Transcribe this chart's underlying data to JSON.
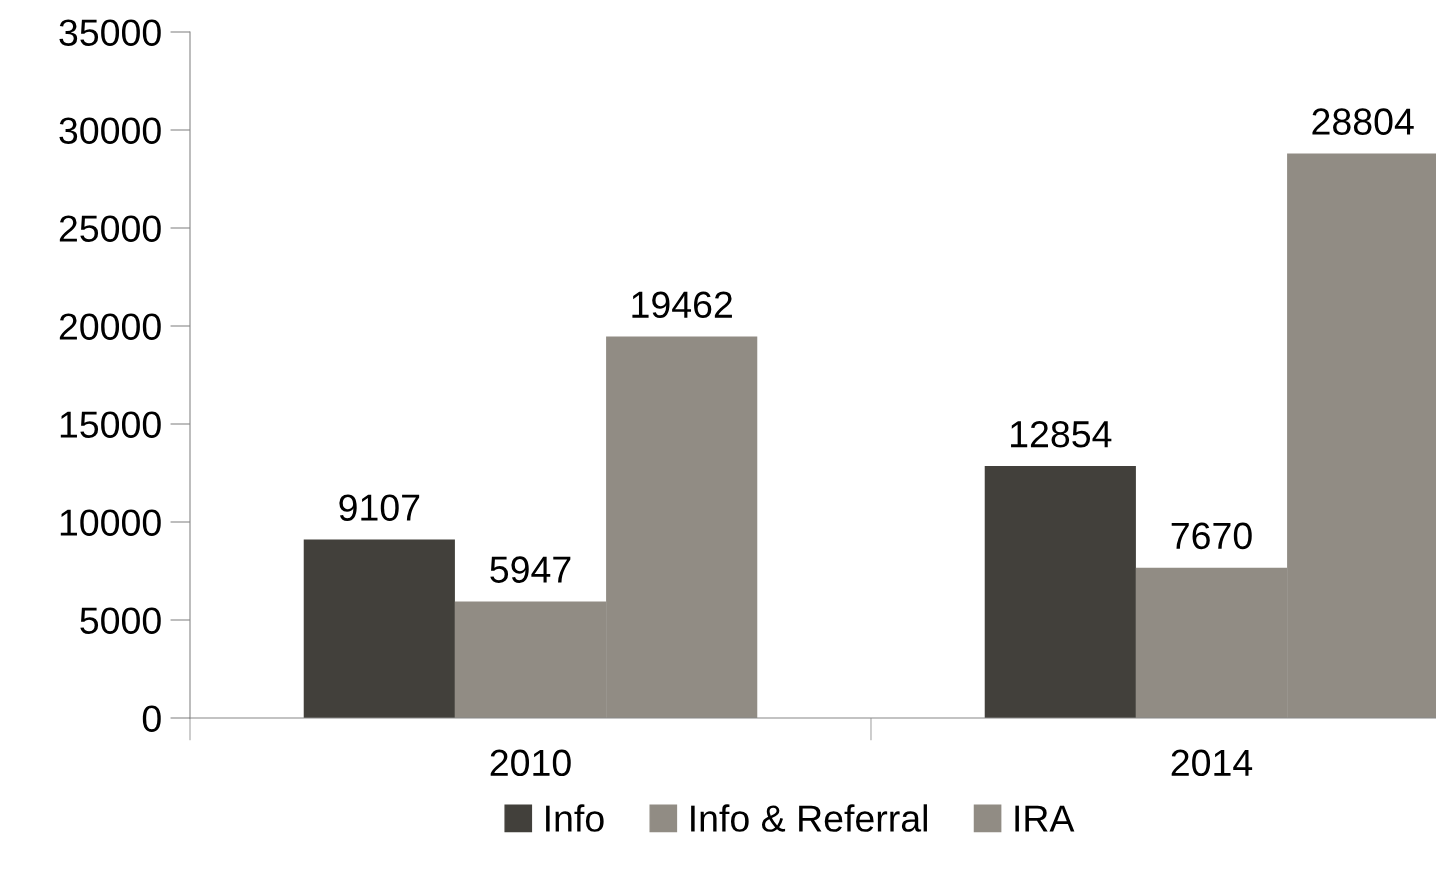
{
  "chart_data": {
    "type": "bar",
    "categories": [
      "2010",
      "2014"
    ],
    "series": [
      {
        "name": "Info",
        "color": "#42403b",
        "values": [
          9107,
          12854
        ]
      },
      {
        "name": "Info & Referral",
        "color": "#918c84",
        "values": [
          5947,
          7670
        ]
      },
      {
        "name": "IRA",
        "color": "#918c84",
        "values": [
          19462,
          28804
        ]
      }
    ],
    "ylim": [
      0,
      35000
    ],
    "yticks": [
      0,
      5000,
      10000,
      15000,
      20000,
      25000,
      30000,
      35000
    ],
    "data_labels": true,
    "legend": "bottom",
    "grid": false
  }
}
